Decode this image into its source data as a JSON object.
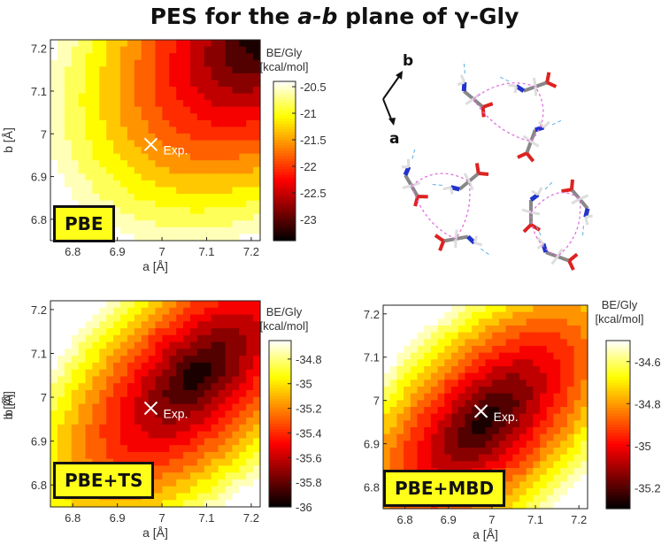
{
  "title": {
    "prefix": "PES for the ",
    "italic": "a-b",
    "suffix": " plane of γ-Gly"
  },
  "chart_data": [
    {
      "type": "heatmap",
      "label": "PBE",
      "xlabel": "a [Å]",
      "ylabel": "b [Å]",
      "xlim": [
        6.75,
        7.22
      ],
      "ylim": [
        6.75,
        7.22
      ],
      "xticks": [
        "6.8",
        "6.9",
        "7",
        "7.1",
        "7.2"
      ],
      "yticks": [
        "6.8",
        "6.9",
        "7",
        "7.1",
        "7.2"
      ],
      "colorbar_title": [
        "BE/Gly",
        "[kcal/mol]"
      ],
      "colorbar_ticks": [
        "-20.5",
        "-21",
        "-21.5",
        "-22",
        "-22.5",
        "-23"
      ],
      "colorbar_values": [
        -20.5,
        -21,
        -21.5,
        -22,
        -22.5,
        -23
      ],
      "zlim": [
        -23.4,
        -20.4
      ],
      "surface": {
        "zmin": -23.4,
        "zmax": -20.4,
        "min_point": [
          7.22,
          7.22
        ]
      },
      "marker": {
        "a": 6.975,
        "b": 6.975,
        "label": "Exp."
      }
    },
    {
      "type": "heatmap",
      "label": "PBE+TS",
      "xlabel": "a [Å]",
      "ylabel": "b [Å]",
      "xlim": [
        6.75,
        7.22
      ],
      "ylim": [
        6.75,
        7.22
      ],
      "xticks": [
        "6.8",
        "6.9",
        "7",
        "7.1",
        "7.2"
      ],
      "yticks": [
        "6.8",
        "6.9",
        "7",
        "7.1",
        "7.2"
      ],
      "colorbar_title": [
        "BE/Gly",
        "[kcal/mol]"
      ],
      "colorbar_ticks": [
        "-34.8",
        "-35",
        "-35.2",
        "-35.4",
        "-35.6",
        "-35.8",
        "-36"
      ],
      "colorbar_values": [
        -34.8,
        -35,
        -35.2,
        -35.4,
        -35.6,
        -35.8,
        -36
      ],
      "zlim": [
        -36.0,
        -34.65
      ],
      "surface": {
        "zmin": -36.0,
        "zmax": -34.65,
        "min_point": [
          7.08,
          7.05
        ]
      },
      "marker": {
        "a": 6.975,
        "b": 6.975,
        "label": "Exp."
      }
    },
    {
      "type": "heatmap",
      "label": "PBE+MBD",
      "xlabel": "a [Å]",
      "ylabel": "b [Å]",
      "xlim": [
        6.75,
        7.22
      ],
      "ylim": [
        6.75,
        7.22
      ],
      "xticks": [
        "6.8",
        "6.9",
        "7",
        "7.1",
        "7.2"
      ],
      "yticks": [
        "6.8",
        "6.9",
        "7",
        "7.1",
        "7.2"
      ],
      "colorbar_title": [
        "BE/Gly",
        "[kcal/mol]"
      ],
      "colorbar_ticks": [
        "-34.6",
        "-34.8",
        "-35",
        "-35.2"
      ],
      "colorbar_values": [
        -34.6,
        -34.8,
        -35,
        -35.2
      ],
      "zlim": [
        -35.3,
        -34.5
      ],
      "surface": {
        "zmin": -35.3,
        "zmax": -34.5,
        "min_point": [
          6.99,
          6.96
        ]
      },
      "marker": {
        "a": 6.975,
        "b": 6.975,
        "label": "Exp."
      }
    }
  ],
  "structure": {
    "axis_a": "a",
    "axis_b": "b"
  }
}
